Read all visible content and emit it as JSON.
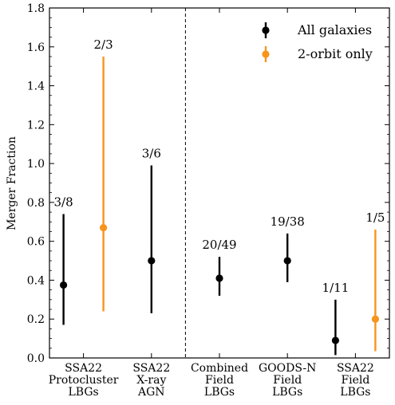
{
  "chart_data": {
    "type": "scatter",
    "ylabel": "Merger Fraction",
    "ylim": [
      0,
      1.8
    ],
    "yticks": [
      "0.0",
      "0.2",
      "0.4",
      "0.6",
      "0.8",
      "1.0",
      "1.2",
      "1.4",
      "1.6",
      "1.8"
    ],
    "categories": [
      [
        "SSA22",
        "Protocluster",
        "LBGs"
      ],
      [
        "SSA22",
        "X-ray",
        "AGN"
      ],
      [
        "Combined",
        "Field",
        "LBGs"
      ],
      [
        "GOODS-N",
        "Field",
        "LBGs"
      ],
      [
        "SSA22",
        "Field",
        "LBGs"
      ]
    ],
    "divider_after_category": 2,
    "legend_position": "top-right",
    "series": [
      {
        "name": "All galaxies",
        "color": "#000000",
        "points": [
          {
            "category": 1,
            "y": 0.375,
            "low": 0.17,
            "high": 0.74,
            "label": "3/8"
          },
          {
            "category": 2,
            "y": 0.5,
            "low": 0.23,
            "high": 0.99,
            "label": "3/6"
          },
          {
            "category": 3,
            "y": 0.41,
            "low": 0.32,
            "high": 0.52,
            "label": "20/49"
          },
          {
            "category": 4,
            "y": 0.5,
            "low": 0.39,
            "high": 0.64,
            "label": "19/38"
          },
          {
            "category": 5,
            "y": 0.09,
            "low": 0.015,
            "high": 0.3,
            "label": "1/11"
          }
        ]
      },
      {
        "name": "2-orbit only",
        "color": "#f7941d",
        "points": [
          {
            "category": 1,
            "y": 0.67,
            "low": 0.24,
            "high": 1.55,
            "label": "2/3"
          },
          {
            "category": 5,
            "y": 0.2,
            "low": 0.035,
            "high": 0.66,
            "label": "1/5"
          }
        ]
      }
    ]
  }
}
